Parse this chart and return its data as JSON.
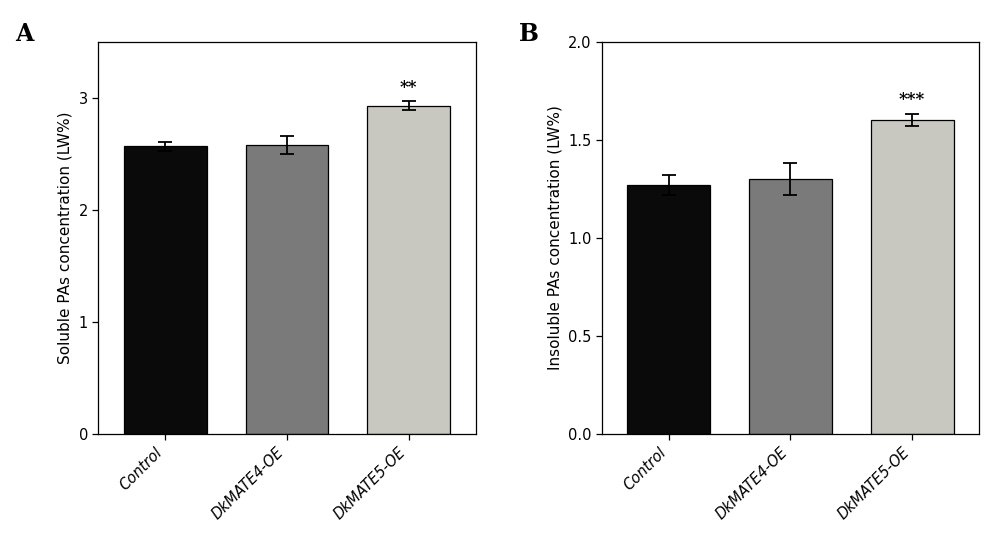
{
  "panel_A": {
    "label": "A",
    "categories": [
      "Control",
      "DkMATE4-OE",
      "DkMATE5-OE"
    ],
    "values": [
      2.57,
      2.58,
      2.93
    ],
    "errors": [
      0.04,
      0.08,
      0.04
    ],
    "colors": [
      "#0a0a0a",
      "#7a7a7a",
      "#c8c8c0"
    ],
    "ylabel": "Soluble PAs concentration (LW%)",
    "ylim": [
      0,
      3.5
    ],
    "yticks": [
      0,
      1.0,
      2.0,
      3.0
    ],
    "significance": [
      "",
      "",
      "**"
    ],
    "bar_width": 0.68
  },
  "panel_B": {
    "label": "B",
    "categories": [
      "Control",
      "DkMATE4-OE",
      "DkMATE5-OE"
    ],
    "values": [
      1.27,
      1.3,
      1.6
    ],
    "errors": [
      0.05,
      0.08,
      0.03
    ],
    "colors": [
      "#0a0a0a",
      "#7a7a7a",
      "#c8c8c0"
    ],
    "ylabel": "Insoluble PAs concentration (LW%)",
    "ylim": [
      0,
      2.0
    ],
    "yticks": [
      0.0,
      0.5,
      1.0,
      1.5,
      2.0
    ],
    "significance": [
      "",
      "",
      "***"
    ],
    "bar_width": 0.68
  }
}
